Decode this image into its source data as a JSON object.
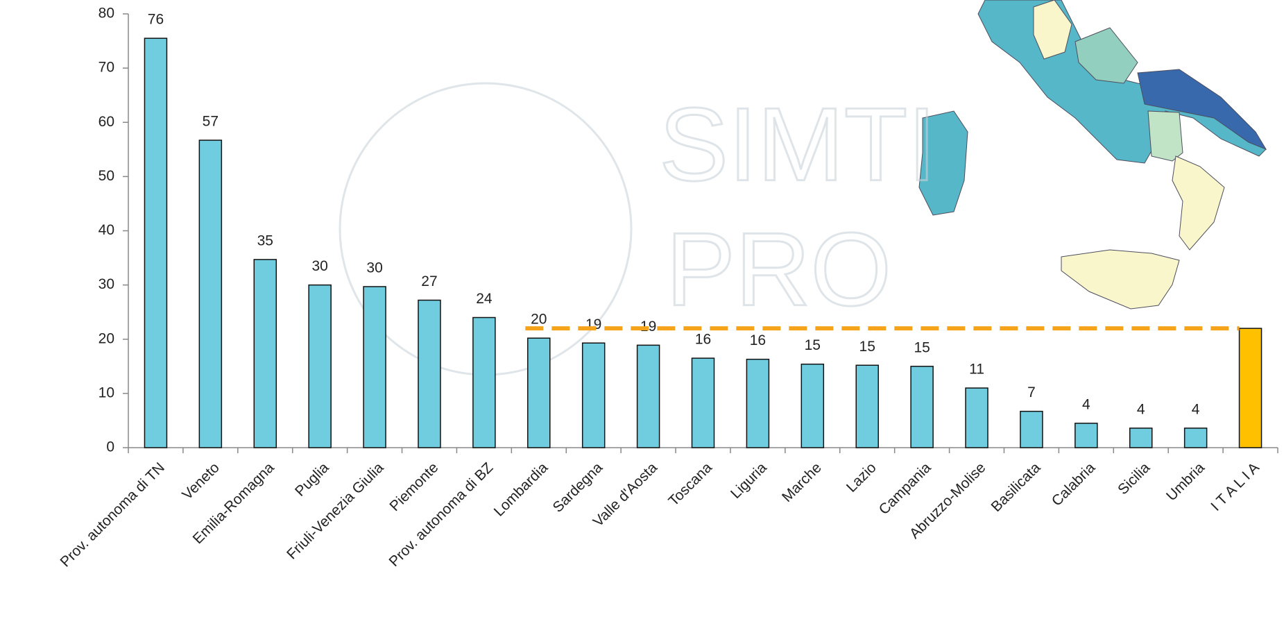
{
  "chart_data": {
    "type": "bar",
    "categories": [
      "Prov. autonoma di TN",
      "Veneto",
      "Emilia-Romagna",
      "Puglia",
      "Friuli-Venezia Giulia",
      "Piemonte",
      "Prov. autonoma di BZ",
      "Lombardia",
      "Sardegna",
      "Valle d'Aosta",
      "Toscana",
      "Liguria",
      "Marche",
      "Lazio",
      "Campania",
      "Abruzzo-Molise",
      "Basilicata",
      "Calabria",
      "Sicilia",
      "Umbria",
      "I T A L I A"
    ],
    "values": [
      75.5,
      56.7,
      34.7,
      30,
      29.7,
      27.2,
      24,
      20.2,
      19.3,
      18.9,
      16.5,
      16.3,
      15.4,
      15.2,
      15,
      11,
      6.7,
      4.5,
      3.6,
      3.6,
      22
    ],
    "value_labels": [
      "76",
      "57",
      "35",
      "30",
      "30",
      "27",
      "24",
      "20",
      "19",
      "19",
      "16",
      "16",
      "15",
      "15",
      "15",
      "11",
      "7",
      "4",
      "4",
      "4",
      null
    ],
    "colors": [
      "#70cde0",
      "#70cde0",
      "#70cde0",
      "#70cde0",
      "#70cde0",
      "#70cde0",
      "#70cde0",
      "#70cde0",
      "#70cde0",
      "#70cde0",
      "#70cde0",
      "#70cde0",
      "#70cde0",
      "#70cde0",
      "#70cde0",
      "#70cde0",
      "#70cde0",
      "#70cde0",
      "#70cde0",
      "#70cde0",
      "#ffc000"
    ],
    "reference_line": {
      "value": 22,
      "color": "#f5a31a"
    },
    "watermark": [
      "SIMTI",
      "PRO"
    ],
    "ylim": [
      0,
      80
    ],
    "yticks": [
      0,
      10,
      20,
      30,
      40,
      50,
      60,
      70,
      80
    ],
    "grid": false
  }
}
